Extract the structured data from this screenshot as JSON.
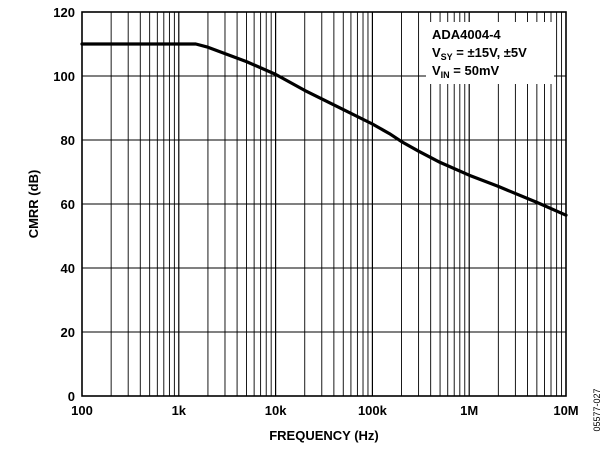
{
  "chart_data": {
    "type": "line",
    "xscale": "log",
    "xlabel": "FREQUENCY (Hz)",
    "ylabel": "CMRR (dB)",
    "xlim": [
      100,
      10000000
    ],
    "ylim": [
      0,
      120
    ],
    "grid": true,
    "x_tick_labels": [
      "100",
      "1k",
      "10k",
      "100k",
      "1M",
      "10M"
    ],
    "y_tick_labels": [
      "0",
      "20",
      "40",
      "60",
      "80",
      "100",
      "120"
    ],
    "annotation": {
      "device": "ADA4004-4",
      "vsy_main": "V",
      "vsy_sub": "SY",
      "vsy_value": " = ±15V, ±5V",
      "vin_main": "V",
      "vin_sub": "IN",
      "vin_value": " = 50mV"
    },
    "figure_id": "05577-027",
    "series": [
      {
        "x": [
          100,
          300,
          1000,
          1500,
          2000,
          3000,
          5000,
          10000,
          20000,
          50000,
          100000,
          150000,
          200000,
          300000,
          500000,
          1000000,
          2000000,
          5000000,
          10000000
        ],
        "y": [
          110,
          110,
          110,
          110,
          109,
          107,
          104.5,
          100.5,
          95.5,
          89.5,
          85,
          82,
          79.5,
          76.5,
          73,
          69,
          65.5,
          60.5,
          56.5
        ]
      }
    ]
  }
}
